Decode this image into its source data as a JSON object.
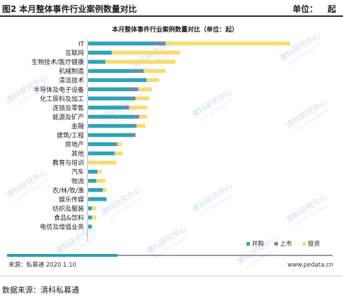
{
  "header": {
    "title": "图2 本月整体事件行业案例数量对比",
    "unit_label": "单位：",
    "unit_value": "起"
  },
  "footer": {
    "source_left": "来源：私募通  2020.1.10",
    "site": "www.pedata.cn",
    "data_source": "数据来源：清科私募通"
  },
  "watermark": {
    "lines": [
      "清科研究中心",
      "Zero IPO Research"
    ],
    "color": "#c9d6e6"
  },
  "colors": {
    "accent_bar": "#2a9fb0",
    "series": [
      "#2ea3b5",
      "#6e8aa4",
      "#f5dd70"
    ]
  },
  "chart_data": {
    "type": "bar",
    "orientation": "horizontal",
    "stacked": true,
    "title": "本月整体事件行业案例数量对比（单位：起）",
    "categories": [
      "IT",
      "互联网",
      "生物技术/医疗健康",
      "机械制造",
      "清洁技术",
      "半导体及电子设备",
      "化工原料及加工",
      "连锁及零售",
      "能源及矿产",
      "金融",
      "建筑/工程",
      "房地产",
      "其他",
      "教育与培训",
      "汽车",
      "物流",
      "农/林/牧/渔",
      "娱乐传媒",
      "纺织及服装",
      "食品&饮料",
      "电信及增值业务"
    ],
    "series": [
      {
        "name": "并购",
        "color": "#2ea3b5",
        "values": [
          73,
          26,
          19,
          47,
          64,
          45,
          46,
          39,
          51,
          49,
          49,
          27,
          29,
          0,
          10,
          9,
          16,
          20,
          4,
          4,
          4
        ]
      },
      {
        "name": "上市",
        "color": "#6e8aa4",
        "values": [
          12,
          0,
          0,
          14,
          0,
          10,
          6,
          6,
          5,
          4,
          3,
          5,
          0,
          0,
          0,
          0,
          0,
          0,
          0,
          0,
          0
        ]
      },
      {
        "name": "投资",
        "color": "#f5dd70",
        "values": [
          137,
          75,
          77,
          24,
          14,
          15,
          15,
          20,
          9,
          10,
          0,
          5,
          9,
          31,
          5,
          10,
          4,
          0,
          5,
          5,
          0
        ]
      }
    ],
    "legend_position": "bottom-right",
    "grid": false
  }
}
